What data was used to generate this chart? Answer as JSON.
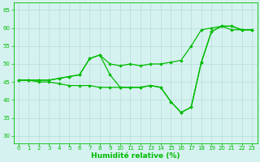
{
  "xlabel": "Humidité relative (%)",
  "xlim": [
    -0.5,
    23.5
  ],
  "ylim": [
    28,
    67
  ],
  "yticks": [
    30,
    35,
    40,
    45,
    50,
    55,
    60,
    65
  ],
  "xticks": [
    0,
    1,
    2,
    3,
    4,
    5,
    6,
    7,
    8,
    9,
    10,
    11,
    12,
    13,
    14,
    15,
    16,
    17,
    18,
    19,
    20,
    21,
    22,
    23
  ],
  "bg_color": "#d5f2f0",
  "grid_color": "#b0d8d0",
  "line_color": "#00bb00",
  "curve1_x": [
    0,
    1,
    2,
    3,
    4,
    5,
    6,
    7,
    8,
    9,
    10,
    11,
    12,
    13,
    14,
    15,
    16,
    17,
    18,
    19,
    20,
    21,
    22,
    23
  ],
  "curve1_y": [
    45.5,
    45.5,
    45.5,
    45.5,
    46.0,
    46.5,
    47.0,
    51.5,
    52.5,
    50.0,
    49.5,
    50.0,
    49.5,
    50.0,
    50.0,
    50.5,
    51.0,
    55.0,
    59.5,
    60.0,
    60.5,
    59.5,
    59.5,
    59.5
  ],
  "curve2_x": [
    0,
    1,
    2,
    3,
    4,
    5,
    6,
    7,
    8,
    9,
    10,
    11,
    12,
    13,
    14,
    15,
    16,
    17,
    18,
    19,
    20,
    21,
    22,
    23
  ],
  "curve2_y": [
    45.5,
    45.5,
    45.0,
    45.0,
    44.5,
    44.0,
    44.0,
    44.0,
    43.5,
    43.5,
    43.5,
    43.5,
    43.5,
    44.0,
    43.5,
    39.5,
    36.5,
    38.0,
    50.5,
    59.0,
    60.5,
    60.5,
    59.5,
    59.5
  ],
  "curve3_x": [
    0,
    1,
    2,
    3,
    4,
    5,
    6,
    7,
    8,
    9,
    10,
    11,
    12,
    13,
    14,
    15,
    16,
    17,
    18,
    19,
    20,
    21,
    22,
    23
  ],
  "curve3_y": [
    45.5,
    45.5,
    45.5,
    45.5,
    46.0,
    46.5,
    47.0,
    51.5,
    52.5,
    47.0,
    43.5,
    43.5,
    43.5,
    44.0,
    43.5,
    39.5,
    36.5,
    38.0,
    50.5,
    59.0,
    60.5,
    60.5,
    59.5,
    59.5
  ],
  "marker_size": 2.2,
  "line_width": 0.9,
  "tick_fontsize": 5.0,
  "xlabel_fontsize": 6.5,
  "xlabel_fontweight": "bold"
}
